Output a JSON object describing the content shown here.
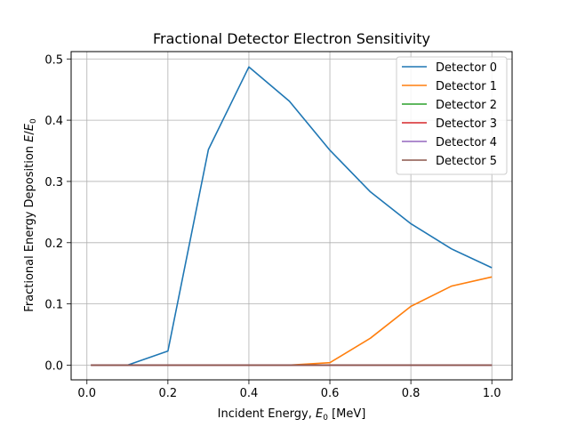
{
  "chart_data": {
    "type": "line",
    "title": "Fractional Detector Electron Sensitivity",
    "xlabel": "Incident Energy, E₀ [MeV]",
    "ylabel": "Fractional Energy Deposition E/E₀",
    "xlim": [
      -0.039,
      1.05
    ],
    "ylim": [
      -0.024,
      0.512
    ],
    "x_ticks": [
      "0.0",
      "0.2",
      "0.4",
      "0.6",
      "0.8",
      "1.0"
    ],
    "y_ticks": [
      "0.0",
      "0.1",
      "0.2",
      "0.3",
      "0.4",
      "0.5"
    ],
    "grid": true,
    "legend_position": "top-right",
    "x": [
      0.01,
      0.1,
      0.2,
      0.3,
      0.4,
      0.5,
      0.6,
      0.7,
      0.8,
      0.9,
      1.0
    ],
    "series": [
      {
        "name": "Detector 0",
        "color": "#1f77b4",
        "values": [
          0.0,
          0.0,
          0.023,
          0.352,
          0.487,
          0.431,
          0.351,
          0.283,
          0.231,
          0.19,
          0.159
        ]
      },
      {
        "name": "Detector 1",
        "color": "#ff7f0e",
        "values": [
          0.0,
          0.0,
          0.0,
          0.0,
          0.0,
          0.0,
          0.004,
          0.044,
          0.096,
          0.129,
          0.144
        ]
      },
      {
        "name": "Detector 2",
        "color": "#2ca02c",
        "values": [
          0.0,
          0.0,
          0.0,
          0.0,
          0.0,
          0.0,
          0.0,
          0.0,
          0.0,
          0.0,
          0.0
        ]
      },
      {
        "name": "Detector 3",
        "color": "#d62728",
        "values": [
          0.0,
          0.0,
          0.0,
          0.0,
          0.0,
          0.0,
          0.0,
          0.0,
          0.0,
          0.0,
          0.0
        ]
      },
      {
        "name": "Detector 4",
        "color": "#9467bd",
        "values": [
          0.0,
          0.0,
          0.0,
          0.0,
          0.0,
          0.0,
          0.0,
          0.0,
          0.0,
          0.0,
          0.0
        ]
      },
      {
        "name": "Detector 5",
        "color": "#8c564b",
        "values": [
          0.0,
          0.0,
          0.0,
          0.0,
          0.0,
          0.0,
          0.0,
          0.0,
          0.0,
          0.0,
          0.0
        ]
      }
    ]
  }
}
